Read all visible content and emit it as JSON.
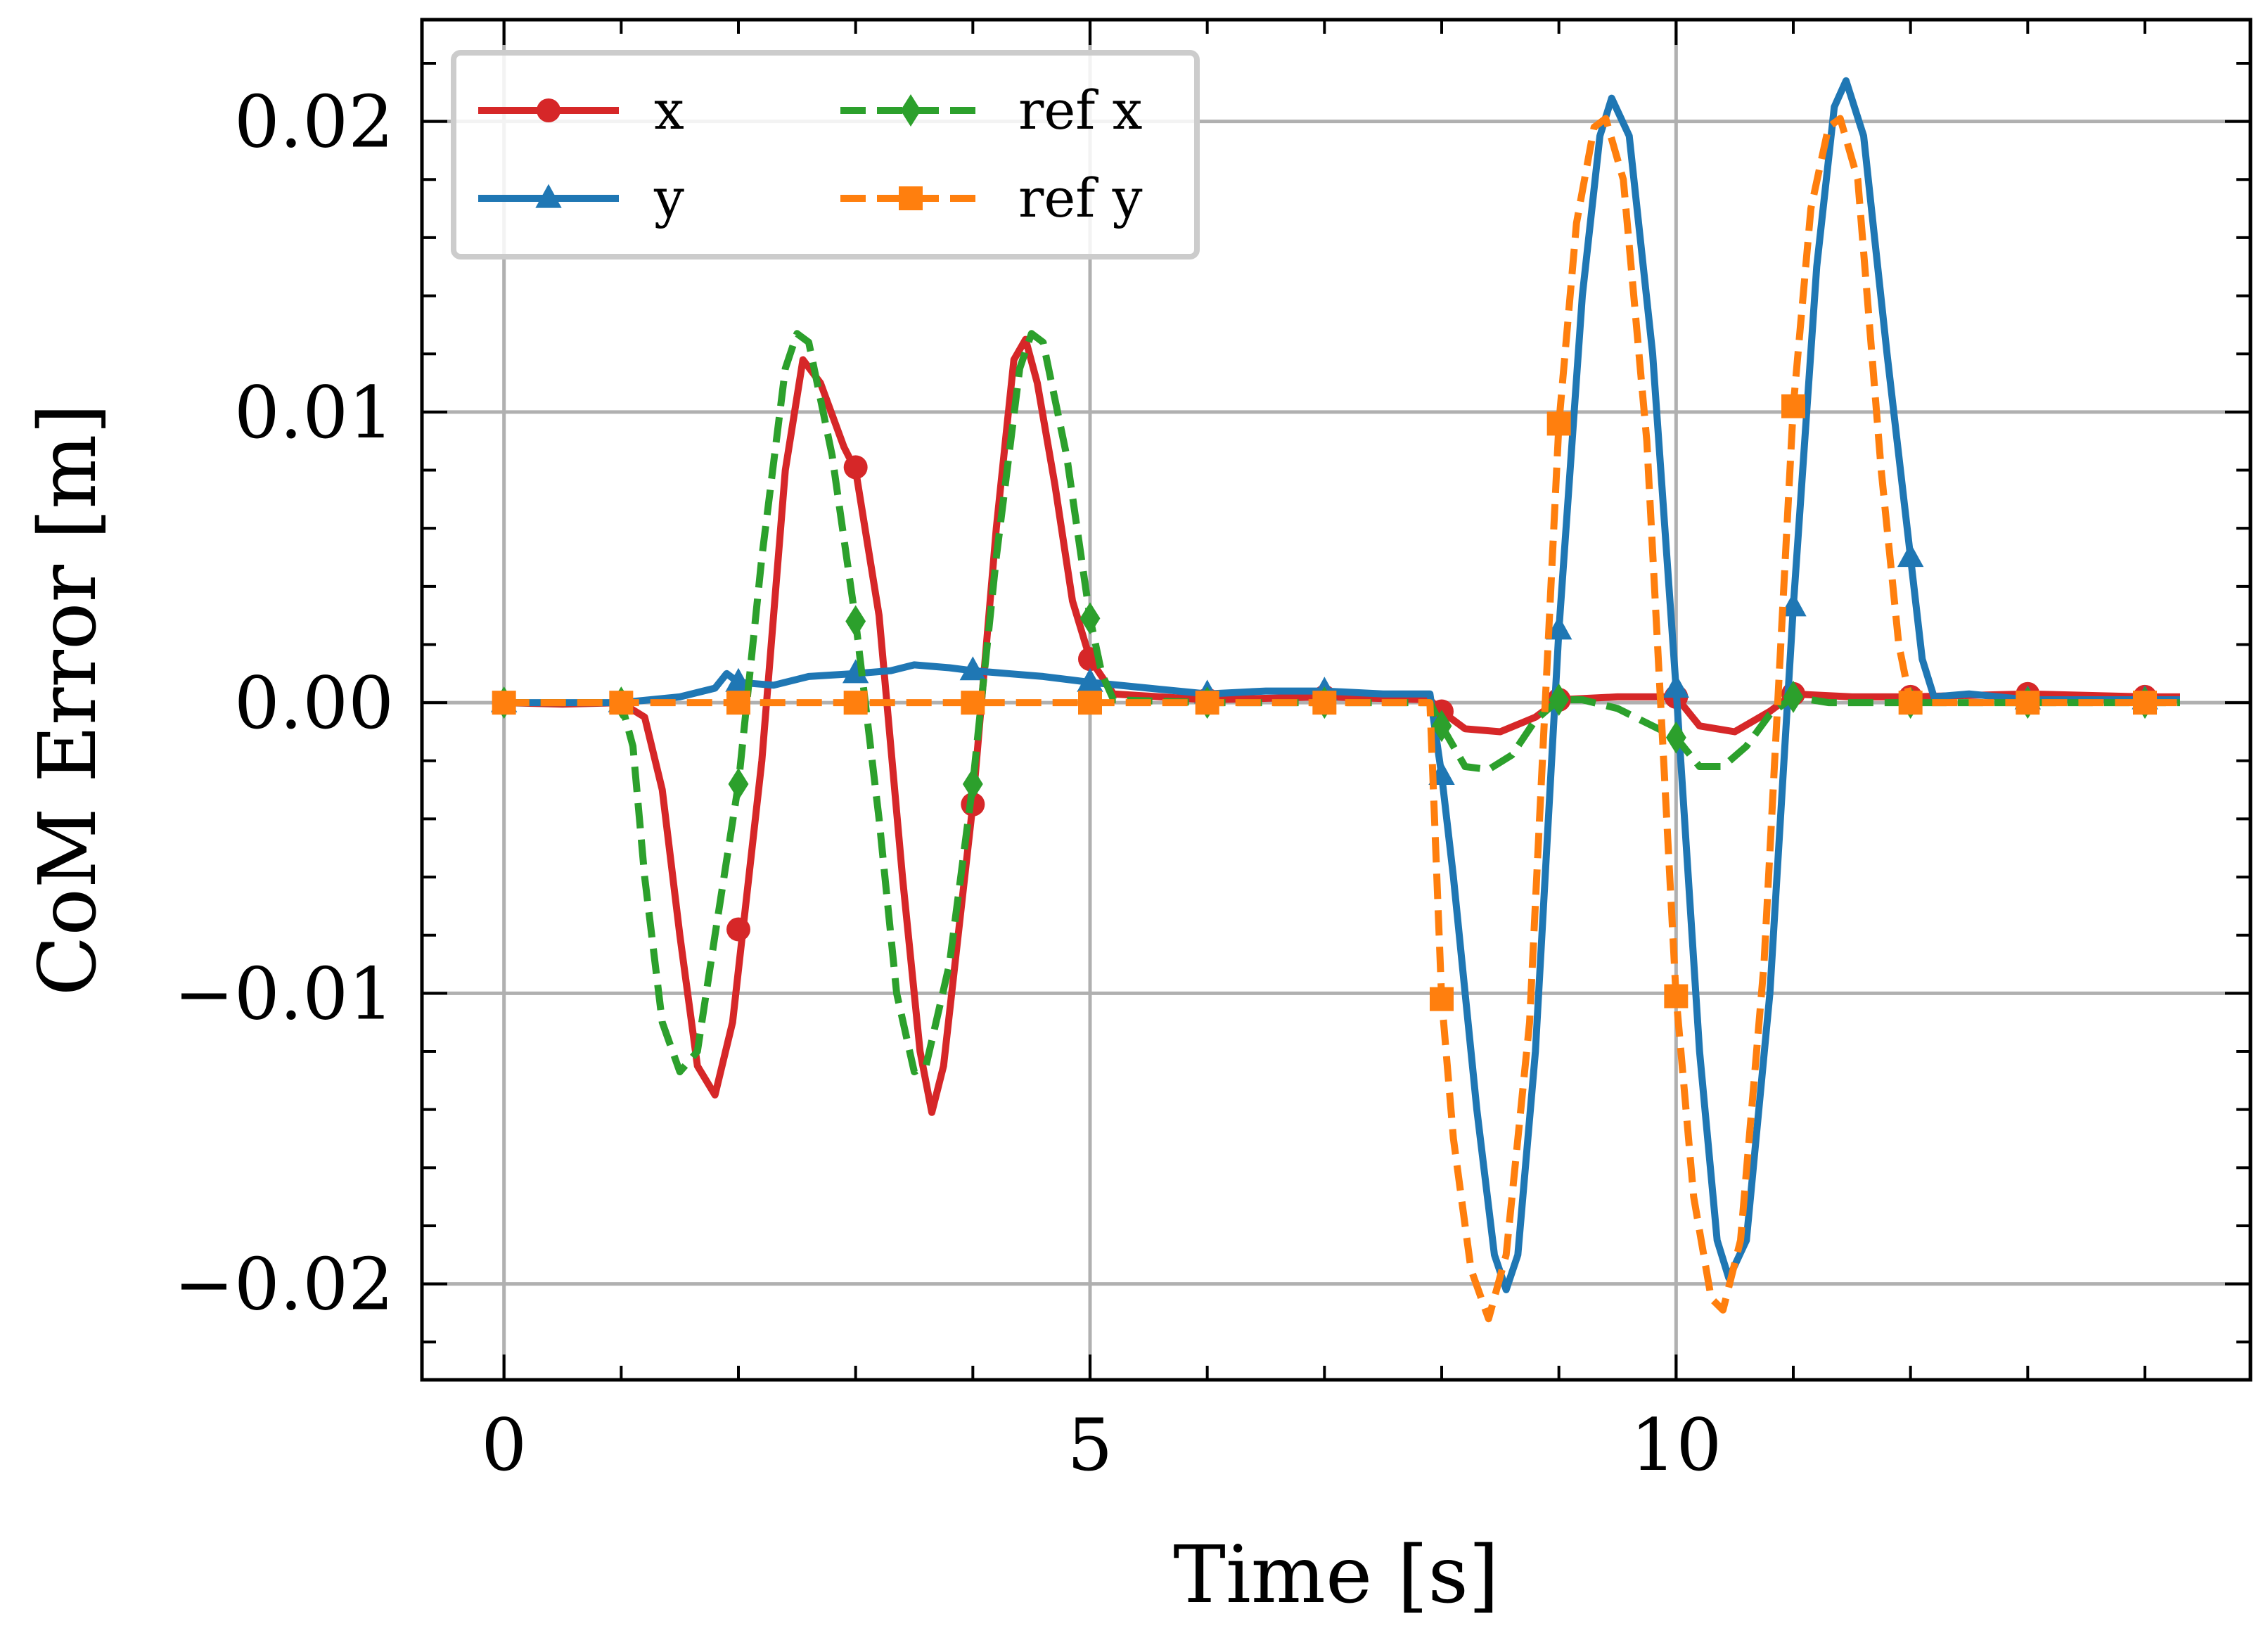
{
  "chart_data": {
    "type": "line",
    "xlabel": "Time [s]",
    "ylabel": "CoM Error [m]",
    "xlim": [
      -0.7,
      14.9
    ],
    "ylim": [
      -0.0233,
      0.0235
    ],
    "xticks": [
      0,
      5,
      10
    ],
    "xtick_labels": [
      "0",
      "5",
      "10"
    ],
    "yticks": [
      -0.02,
      -0.01,
      0.0,
      0.01,
      0.02
    ],
    "ytick_labels": [
      "−0.02",
      "−0.01",
      "0.00",
      "0.01",
      "0.02"
    ],
    "grid": true,
    "legend_position": "top-left",
    "series": [
      {
        "name": "x",
        "label": "x",
        "color": "#d62728",
        "dash": "solid",
        "marker": "circle",
        "points": [
          [
            0,
            0
          ],
          [
            0.5,
            -5e-05
          ],
          [
            1.0,
            0
          ],
          [
            1.2,
            -0.0005
          ],
          [
            1.35,
            -0.003
          ],
          [
            1.5,
            -0.008
          ],
          [
            1.65,
            -0.0125
          ],
          [
            1.8,
            -0.0135
          ],
          [
            1.95,
            -0.011
          ],
          [
            2.2,
            -0.002
          ],
          [
            2.4,
            0.008
          ],
          [
            2.55,
            0.0118
          ],
          [
            2.7,
            0.011
          ],
          [
            2.9,
            0.0088
          ],
          [
            3.0,
            0.008
          ],
          [
            3.2,
            0.003
          ],
          [
            3.4,
            -0.006
          ],
          [
            3.55,
            -0.012
          ],
          [
            3.65,
            -0.0141
          ],
          [
            3.75,
            -0.0125
          ],
          [
            4.0,
            -0.0035
          ],
          [
            4.2,
            0.006
          ],
          [
            4.35,
            0.0118
          ],
          [
            4.45,
            0.0125
          ],
          [
            4.55,
            0.011
          ],
          [
            4.7,
            0.0075
          ],
          [
            4.85,
            0.0035
          ],
          [
            5.0,
            0.0015
          ],
          [
            5.2,
            0.0003
          ],
          [
            6.0,
            0.0001
          ],
          [
            7.0,
            0.0002
          ],
          [
            7.9,
            0.0001
          ],
          [
            8.0,
            -0.0003
          ],
          [
            8.2,
            -0.0009
          ],
          [
            8.5,
            -0.001
          ],
          [
            8.8,
            -0.0005
          ],
          [
            9.0,
            0.0001
          ],
          [
            9.5,
            0.0002
          ],
          [
            10.0,
            0.0002
          ],
          [
            10.2,
            -0.0008
          ],
          [
            10.5,
            -0.001
          ],
          [
            10.8,
            -0.0003
          ],
          [
            11.0,
            0.0003
          ],
          [
            11.5,
            0.0002
          ],
          [
            12.0,
            0.0002
          ],
          [
            13.0,
            0.0003
          ],
          [
            14.0,
            0.0002
          ],
          [
            14.3,
            0.0002
          ]
        ],
        "markers": [
          [
            0,
            0
          ],
          [
            1,
            0
          ],
          [
            2,
            -0.0078
          ],
          [
            3,
            0.0081
          ],
          [
            4,
            -0.0035
          ],
          [
            5,
            0.0015
          ],
          [
            6,
            0.0001
          ],
          [
            7,
            0.0002
          ],
          [
            8,
            -0.0003
          ],
          [
            9,
            0.0001
          ],
          [
            10,
            0.0002
          ],
          [
            11,
            0.0003
          ],
          [
            12,
            0.0002
          ],
          [
            13,
            0.0003
          ],
          [
            14,
            0.0002
          ]
        ]
      },
      {
        "name": "y",
        "label": "y",
        "color": "#1f77b4",
        "dash": "solid",
        "marker": "triangle",
        "points": [
          [
            0,
            0
          ],
          [
            1.0,
            0
          ],
          [
            1.5,
            0.0002
          ],
          [
            1.8,
            0.0005
          ],
          [
            1.9,
            0.001
          ],
          [
            2.0,
            0.0007
          ],
          [
            2.3,
            0.0006
          ],
          [
            2.6,
            0.0009
          ],
          [
            3.0,
            0.001
          ],
          [
            3.3,
            0.0011
          ],
          [
            3.5,
            0.0013
          ],
          [
            3.8,
            0.0012
          ],
          [
            4.0,
            0.0011
          ],
          [
            4.3,
            0.001
          ],
          [
            4.6,
            0.0009
          ],
          [
            5.0,
            0.0007
          ],
          [
            5.5,
            0.0005
          ],
          [
            6.0,
            0.0003
          ],
          [
            6.5,
            0.0004
          ],
          [
            7.0,
            0.0004
          ],
          [
            7.5,
            0.0003
          ],
          [
            7.9,
            0.0003
          ],
          [
            8.0,
            -0.0025
          ],
          [
            8.1,
            -0.006
          ],
          [
            8.3,
            -0.014
          ],
          [
            8.45,
            -0.019
          ],
          [
            8.55,
            -0.0202
          ],
          [
            8.65,
            -0.019
          ],
          [
            8.8,
            -0.012
          ],
          [
            9.0,
            0.0025
          ],
          [
            9.2,
            0.014
          ],
          [
            9.35,
            0.0195
          ],
          [
            9.45,
            0.0208
          ],
          [
            9.6,
            0.0195
          ],
          [
            9.8,
            0.012
          ],
          [
            10.0,
            0.0005
          ],
          [
            10.2,
            -0.012
          ],
          [
            10.35,
            -0.0185
          ],
          [
            10.45,
            -0.0198
          ],
          [
            10.6,
            -0.0185
          ],
          [
            10.8,
            -0.01
          ],
          [
            11.0,
            0.0033
          ],
          [
            11.2,
            0.015
          ],
          [
            11.35,
            0.0205
          ],
          [
            11.45,
            0.0214
          ],
          [
            11.6,
            0.0195
          ],
          [
            11.8,
            0.012
          ],
          [
            12.0,
            0.005
          ],
          [
            12.1,
            0.0015
          ],
          [
            12.2,
            0.0002
          ],
          [
            12.5,
            0.0003
          ],
          [
            13.0,
            0.0001
          ],
          [
            14.0,
            0.0001
          ],
          [
            14.3,
            0.0001
          ]
        ],
        "markers": [
          [
            0,
            0
          ],
          [
            1,
            0
          ],
          [
            2,
            0.0007
          ],
          [
            3,
            0.001
          ],
          [
            4,
            0.0011
          ],
          [
            5,
            0.0007
          ],
          [
            6,
            0.0003
          ],
          [
            7,
            0.0004
          ],
          [
            8,
            -0.0025
          ],
          [
            9,
            0.0025
          ],
          [
            10,
            0.0005
          ],
          [
            11,
            0.0033
          ],
          [
            12,
            0.005
          ],
          [
            13,
            0.0001
          ],
          [
            14,
            0.0001
          ]
        ]
      },
      {
        "name": "ref x",
        "label": "ref x",
        "color": "#2ca02c",
        "dash": "dashed",
        "marker": "diamond",
        "points": [
          [
            0,
            0
          ],
          [
            1.0,
            0
          ],
          [
            1.1,
            -0.0015
          ],
          [
            1.2,
            -0.006
          ],
          [
            1.35,
            -0.011
          ],
          [
            1.5,
            -0.0127
          ],
          [
            1.65,
            -0.012
          ],
          [
            1.8,
            -0.008
          ],
          [
            2.0,
            -0.0028
          ],
          [
            2.2,
            0.005
          ],
          [
            2.4,
            0.0115
          ],
          [
            2.5,
            0.0127
          ],
          [
            2.6,
            0.0124
          ],
          [
            2.8,
            0.0085
          ],
          [
            3.0,
            0.0028
          ],
          [
            3.2,
            -0.004
          ],
          [
            3.35,
            -0.01
          ],
          [
            3.5,
            -0.0127
          ],
          [
            3.6,
            -0.0125
          ],
          [
            3.8,
            -0.009
          ],
          [
            4.0,
            -0.0028
          ],
          [
            4.2,
            0.005
          ],
          [
            4.4,
            0.0115
          ],
          [
            4.5,
            0.0127
          ],
          [
            4.6,
            0.0124
          ],
          [
            4.8,
            0.0085
          ],
          [
            5.0,
            0.0029
          ],
          [
            5.1,
            0.001
          ],
          [
            5.2,
            0.0001
          ],
          [
            6.0,
            0
          ],
          [
            7.0,
            0
          ],
          [
            7.9,
            0
          ],
          [
            8.0,
            -0.0008
          ],
          [
            8.2,
            -0.0022
          ],
          [
            8.4,
            -0.0023
          ],
          [
            8.6,
            -0.0018
          ],
          [
            8.8,
            -0.0006
          ],
          [
            9.0,
            0.0001
          ],
          [
            9.2,
            0.0001
          ],
          [
            9.5,
            -0.0002
          ],
          [
            10.0,
            -0.0012
          ],
          [
            10.2,
            -0.0022
          ],
          [
            10.4,
            -0.0022
          ],
          [
            10.6,
            -0.0015
          ],
          [
            10.8,
            -0.0004
          ],
          [
            11.0,
            0.0002
          ],
          [
            11.3,
            0
          ],
          [
            12.0,
            0
          ],
          [
            13.0,
            0
          ],
          [
            14.0,
            0
          ],
          [
            14.3,
            0
          ]
        ],
        "markers": [
          [
            0,
            0
          ],
          [
            1,
            0
          ],
          [
            2,
            -0.0028
          ],
          [
            3,
            0.0028
          ],
          [
            4,
            -0.0028
          ],
          [
            5,
            0.0029
          ],
          [
            6,
            0
          ],
          [
            7,
            0
          ],
          [
            8,
            -0.0008
          ],
          [
            9,
            0.0001
          ],
          [
            10,
            -0.0012
          ],
          [
            11,
            0.0002
          ],
          [
            12,
            0
          ],
          [
            13,
            0
          ],
          [
            14,
            0
          ]
        ]
      },
      {
        "name": "ref y",
        "label": "ref y",
        "color": "#ff7f0e",
        "dash": "dashed",
        "marker": "square",
        "points": [
          [
            0,
            0
          ],
          [
            1.0,
            0
          ],
          [
            2.0,
            0
          ],
          [
            3.0,
            0
          ],
          [
            4.0,
            0
          ],
          [
            5.0,
            0
          ],
          [
            6.0,
            0
          ],
          [
            7.0,
            0
          ],
          [
            7.9,
            0
          ],
          [
            8.0,
            -0.0102
          ],
          [
            8.1,
            -0.015
          ],
          [
            8.25,
            -0.0195
          ],
          [
            8.4,
            -0.0212
          ],
          [
            8.55,
            -0.019
          ],
          [
            8.75,
            -0.011
          ],
          [
            9.0,
            0.0096
          ],
          [
            9.15,
            0.0165
          ],
          [
            9.3,
            0.0198
          ],
          [
            9.4,
            0.0201
          ],
          [
            9.55,
            0.018
          ],
          [
            9.75,
            0.009
          ],
          [
            10.0,
            -0.0101
          ],
          [
            10.15,
            -0.017
          ],
          [
            10.3,
            -0.0205
          ],
          [
            10.4,
            -0.0209
          ],
          [
            10.55,
            -0.0185
          ],
          [
            10.75,
            -0.009
          ],
          [
            11.0,
            0.0102
          ],
          [
            11.15,
            0.017
          ],
          [
            11.3,
            0.0198
          ],
          [
            11.4,
            0.0201
          ],
          [
            11.55,
            0.018
          ],
          [
            11.75,
            0.008
          ],
          [
            11.9,
            0.002
          ],
          [
            12.0,
            0
          ],
          [
            13.0,
            0
          ],
          [
            14.0,
            0
          ],
          [
            14.3,
            0
          ]
        ],
        "markers": [
          [
            0,
            0
          ],
          [
            1,
            0
          ],
          [
            2,
            0
          ],
          [
            3,
            0
          ],
          [
            4,
            0
          ],
          [
            5,
            0
          ],
          [
            6,
            0
          ],
          [
            7,
            0
          ],
          [
            8,
            -0.0102
          ],
          [
            9,
            0.0096
          ],
          [
            10,
            -0.0101
          ],
          [
            11,
            0.0102
          ],
          [
            12,
            0
          ],
          [
            13,
            0
          ],
          [
            14,
            0
          ]
        ]
      }
    ]
  }
}
